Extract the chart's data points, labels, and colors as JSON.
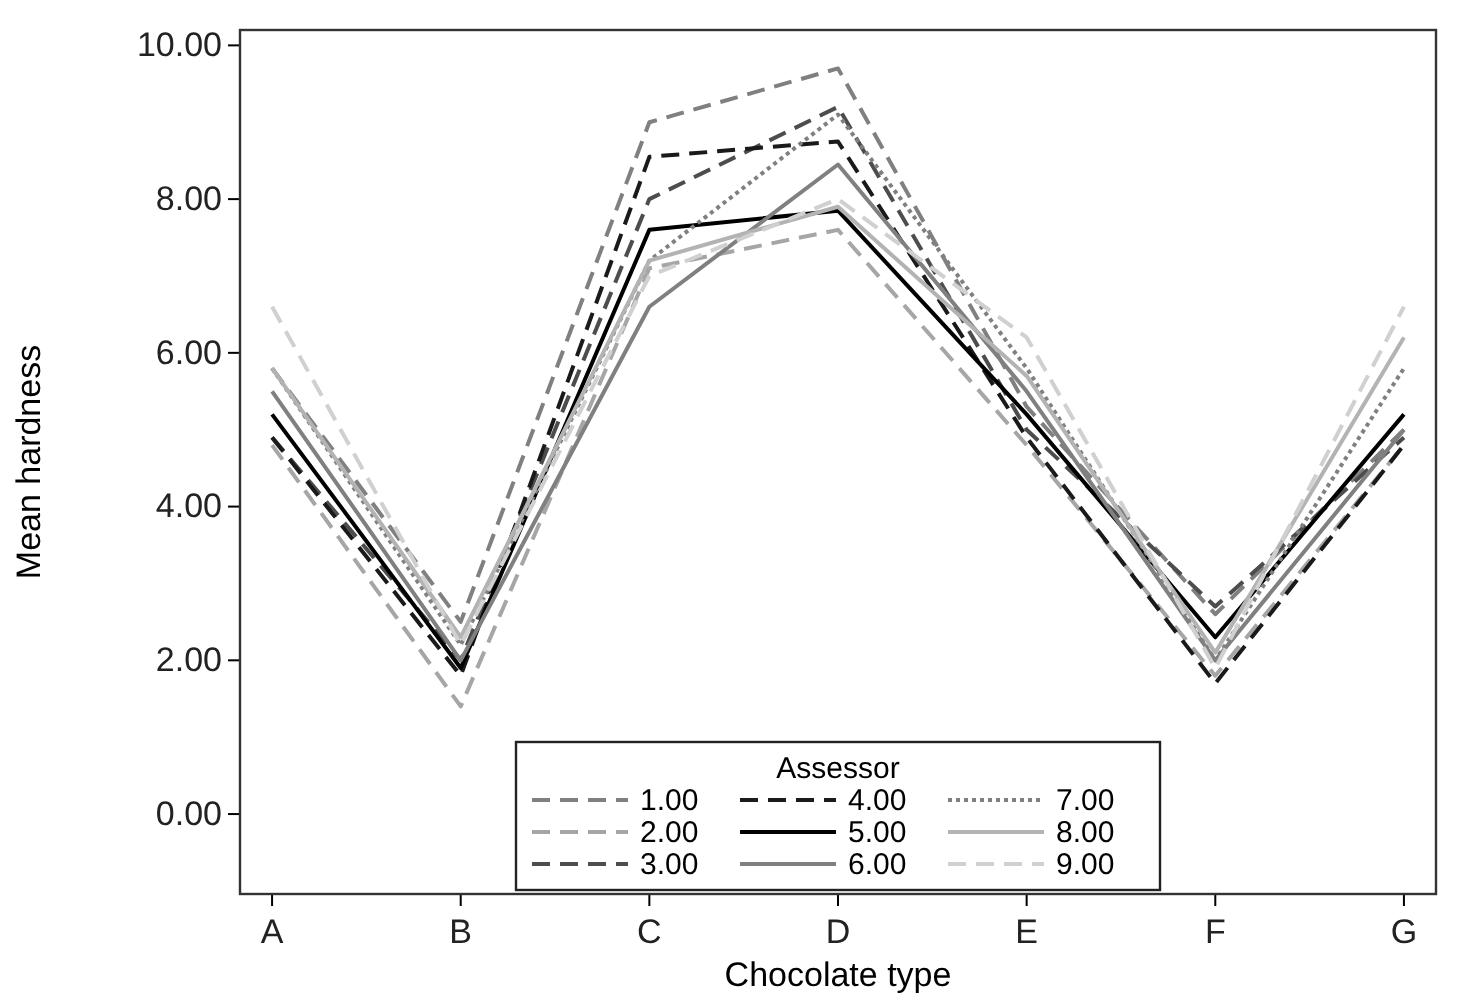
{
  "chart_data": {
    "type": "line",
    "xlabel": "Chocolate type",
    "ylabel": "Mean hardness",
    "legend_title": "Assessor",
    "legend": "bottom",
    "categories": [
      "A",
      "B",
      "C",
      "D",
      "E",
      "F",
      "G"
    ],
    "ylim": [
      -1.04,
      10.2
    ],
    "yticks": [
      {
        "value": 0,
        "label": "0.00"
      },
      {
        "value": 2,
        "label": "2.00"
      },
      {
        "value": 4,
        "label": "4.00"
      },
      {
        "value": 6,
        "label": "6.00"
      },
      {
        "value": 8,
        "label": "8.00"
      },
      {
        "value": 10,
        "label": "10.00"
      }
    ],
    "series": [
      {
        "name": "1.00",
        "color": "#808080",
        "line_style": "dashed",
        "values": [
          5.8,
          2.5,
          9.0,
          9.7,
          5.3,
          2.6,
          5.0
        ]
      },
      {
        "name": "2.00",
        "color": "#a6a6a6",
        "line_style": "dashed",
        "values": [
          4.8,
          1.4,
          7.1,
          7.6,
          4.8,
          1.8,
          4.8
        ]
      },
      {
        "name": "3.00",
        "color": "#4d4d4d",
        "line_style": "dashed",
        "values": [
          4.9,
          2.0,
          8.0,
          9.2,
          5.0,
          2.7,
          4.9
        ]
      },
      {
        "name": "4.00",
        "color": "#1a1a1a",
        "line_style": "dashed",
        "values": [
          4.9,
          1.8,
          8.55,
          8.75,
          4.9,
          1.7,
          4.8
        ]
      },
      {
        "name": "5.00",
        "color": "#000000",
        "line_style": "solid",
        "values": [
          5.2,
          1.9,
          7.6,
          7.85,
          5.2,
          2.3,
          5.2
        ]
      },
      {
        "name": "6.00",
        "color": "#808080",
        "line_style": "solid",
        "values": [
          5.5,
          2.0,
          6.6,
          8.45,
          5.5,
          2.0,
          5.0
        ]
      },
      {
        "name": "7.00",
        "color": "#808080",
        "line_style": "dotted",
        "values": [
          5.8,
          2.2,
          7.2,
          9.1,
          5.8,
          2.0,
          5.8
        ]
      },
      {
        "name": "8.00",
        "color": "#b3b3b3",
        "line_style": "solid",
        "values": [
          5.8,
          2.3,
          7.2,
          7.9,
          5.7,
          2.1,
          6.2
        ]
      },
      {
        "name": "9.00",
        "color": "#d0d0d0",
        "line_style": "dashed",
        "values": [
          6.6,
          2.2,
          7.0,
          8.0,
          6.2,
          1.9,
          6.6
        ]
      }
    ]
  }
}
